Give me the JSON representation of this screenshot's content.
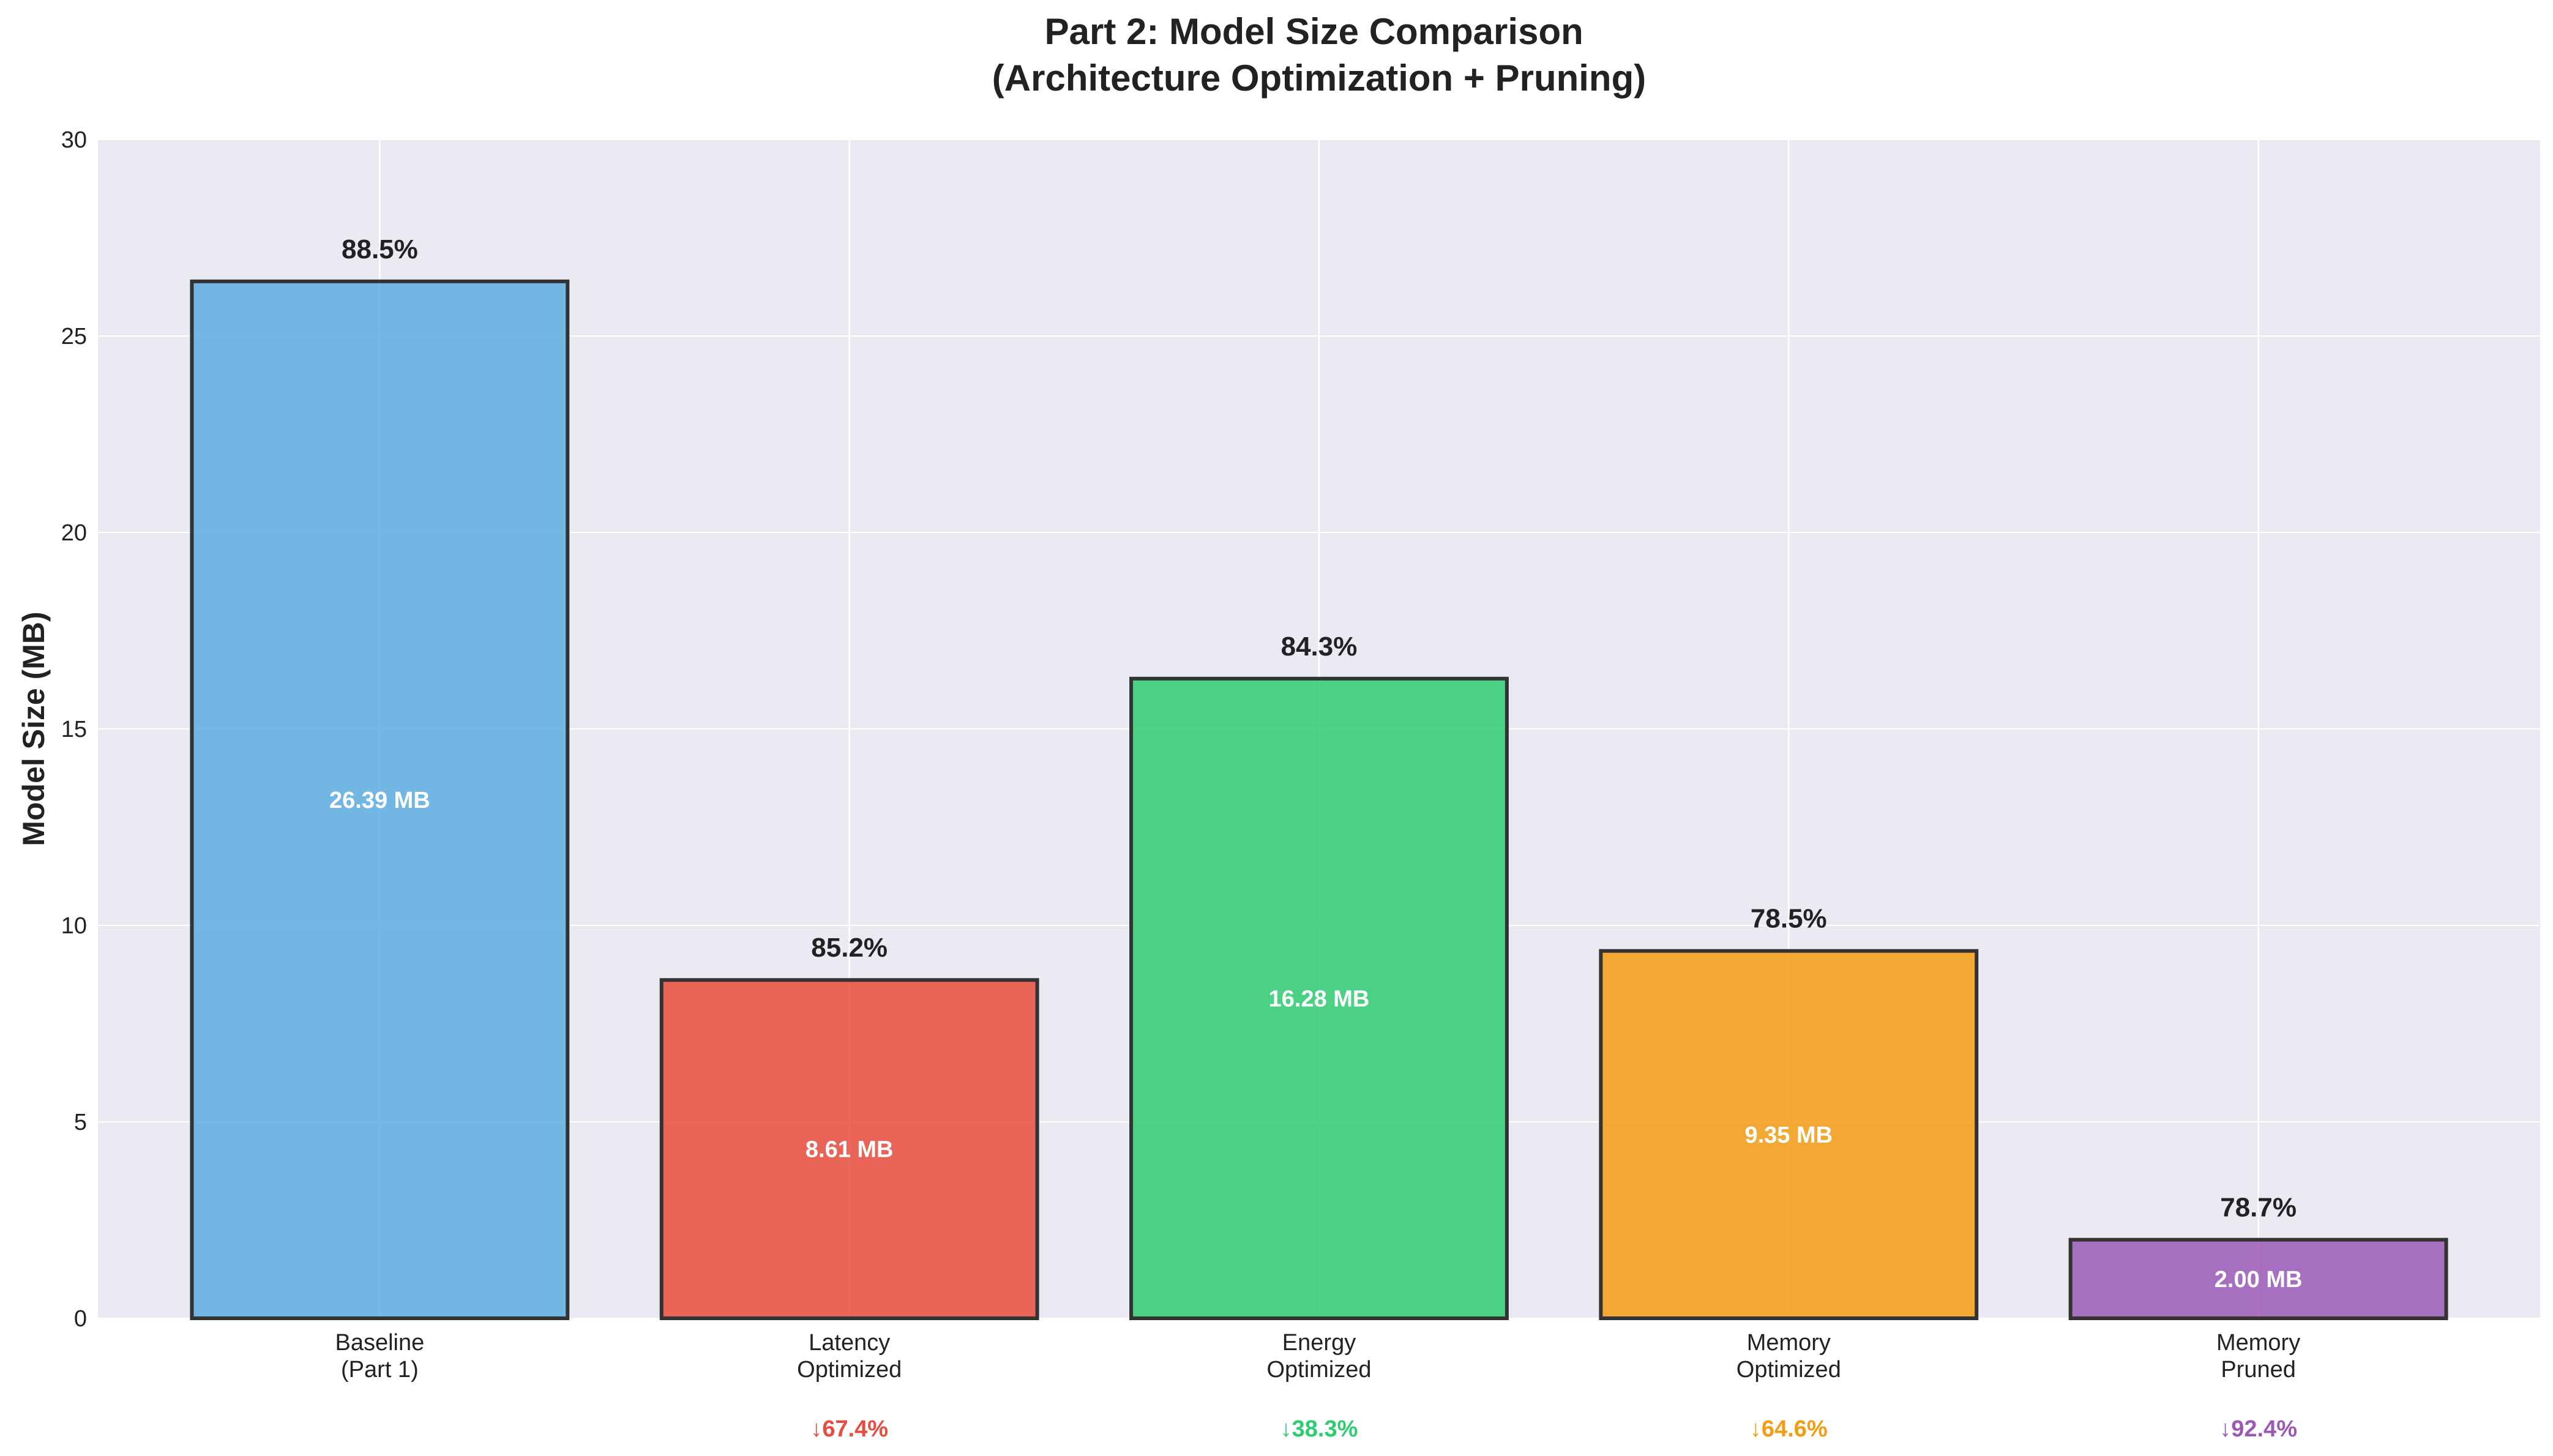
{
  "chart_data": {
    "type": "bar",
    "title": [
      "Part 2: Model Size Comparison",
      "(Architecture Optimization + Pruning)"
    ],
    "ylabel": "Model Size (MB)",
    "xlabel": "",
    "ylim": [
      0,
      30
    ],
    "yticks": [
      0,
      5,
      10,
      15,
      20,
      25,
      30
    ],
    "grid": true,
    "categories": [
      [
        "Baseline",
        "(Part 1)"
      ],
      [
        "Latency",
        "Optimized"
      ],
      [
        "Energy",
        "Optimized"
      ],
      [
        "Memory",
        "Optimized"
      ],
      [
        "Memory",
        "Pruned"
      ]
    ],
    "values": [
      26.39,
      8.61,
      16.28,
      9.35,
      2.0
    ],
    "value_labels": [
      "26.39 MB",
      "8.61 MB",
      "16.28 MB",
      "9.35 MB",
      "2.00 MB"
    ],
    "top_labels": [
      "88.5%",
      "85.2%",
      "84.3%",
      "78.5%",
      "78.7%"
    ],
    "reduction_labels": [
      "",
      "↓67.4%",
      "↓38.3%",
      "↓64.6%",
      "↓92.4%"
    ],
    "colors": [
      "#5DADE2",
      "#E74C3C",
      "#2ECC71",
      "#F39C12",
      "#9B59B6"
    ],
    "bar_edge_color": "#333333",
    "background_color": "#EAEAF2",
    "grid_color": "#FFFFFF"
  }
}
